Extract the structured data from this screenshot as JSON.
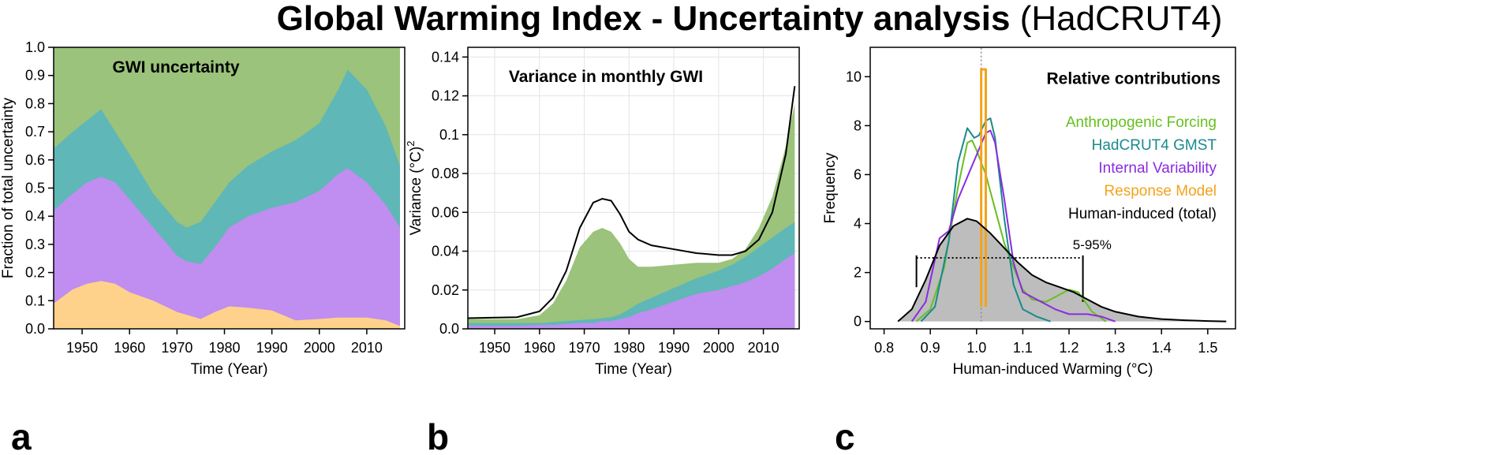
{
  "figure": {
    "title_bold": "Global Warming Index - Uncertainty analysis",
    "title_normal": "(HadCRUT4)"
  },
  "colors": {
    "orange_fill": "#fed28a",
    "purple_fill": "#c08df0",
    "teal_fill": "#5fb7b7",
    "green_fill": "#9bc37b",
    "grey_fill": "#bdbdbd",
    "anthropogenic": "#66c01f",
    "hadcrut": "#1a8a8c",
    "internal": "#8a2be2",
    "response": "#f2a31b",
    "total": "#000000"
  },
  "chart_data": [
    {
      "panel_letter": "a",
      "type": "area",
      "title": "GWI uncertainty",
      "xlabel": "Time (Year)",
      "ylabel": "Fraction of total uncertainty",
      "xlim": [
        1944,
        2018
      ],
      "ylim": [
        0,
        1.0
      ],
      "xticks": [
        "1950",
        "1960",
        "1970",
        "1980",
        "1990",
        "2000",
        "2010"
      ],
      "yticks": [
        "0.0",
        "0.1",
        "0.2",
        "0.3",
        "0.4",
        "0.5",
        "0.6",
        "0.7",
        "0.8",
        "0.9",
        "1.0"
      ],
      "grid": false,
      "stacking": "cumulative boundaries",
      "x": [
        1944,
        1948,
        1951,
        1954,
        1957,
        1960,
        1965,
        1970,
        1972,
        1975,
        1978,
        1981,
        1985,
        1990,
        1995,
        2000,
        2004,
        2006,
        2010,
        2014,
        2017
      ],
      "series": [
        {
          "color_key": "orange_fill",
          "values": [
            0.09,
            0.14,
            0.16,
            0.17,
            0.16,
            0.13,
            0.1,
            0.06,
            0.05,
            0.035,
            0.06,
            0.08,
            0.075,
            0.065,
            0.03,
            0.035,
            0.04,
            0.04,
            0.04,
            0.03,
            0.01
          ]
        },
        {
          "color_key": "purple_fill",
          "values": [
            0.42,
            0.48,
            0.52,
            0.54,
            0.52,
            0.46,
            0.36,
            0.26,
            0.24,
            0.23,
            0.29,
            0.36,
            0.4,
            0.43,
            0.45,
            0.49,
            0.55,
            0.57,
            0.52,
            0.44,
            0.36
          ]
        },
        {
          "color_key": "teal_fill",
          "values": [
            0.64,
            0.7,
            0.74,
            0.78,
            0.7,
            0.62,
            0.48,
            0.38,
            0.36,
            0.38,
            0.45,
            0.52,
            0.58,
            0.63,
            0.67,
            0.73,
            0.85,
            0.92,
            0.85,
            0.72,
            0.58
          ]
        },
        {
          "color_key": "green_fill",
          "values": [
            1.0,
            1.0,
            1.0,
            1.0,
            1.0,
            1.0,
            1.0,
            1.0,
            1.0,
            1.0,
            1.0,
            1.0,
            1.0,
            1.0,
            1.0,
            1.0,
            1.0,
            1.0,
            1.0,
            1.0,
            1.0
          ]
        }
      ]
    },
    {
      "panel_letter": "b",
      "type": "area",
      "title": "Variance in monthly GWI",
      "xlabel": "Time (Year)",
      "ylabel": "Variance (°C)",
      "ylabel_sup": "2",
      "xlim": [
        1944,
        2018
      ],
      "ylim": [
        0,
        0.145
      ],
      "xticks": [
        "1950",
        "1960",
        "1970",
        "1980",
        "1990",
        "2000",
        "2010"
      ],
      "yticks": [
        "0.0",
        "0.02",
        "0.04",
        "0.06",
        "0.08",
        "0.1",
        "0.12",
        "0.14"
      ],
      "grid": true,
      "x": [
        1944,
        1950,
        1955,
        1960,
        1963,
        1966,
        1969,
        1972,
        1974,
        1976,
        1978,
        1980,
        1982,
        1985,
        1990,
        1995,
        2000,
        2003,
        2006,
        2009,
        2012,
        2015,
        2017
      ],
      "series": [
        {
          "color_key": "purple_fill",
          "values": [
            0.0015,
            0.0015,
            0.0015,
            0.002,
            0.002,
            0.0025,
            0.003,
            0.003,
            0.004,
            0.004,
            0.005,
            0.006,
            0.008,
            0.01,
            0.014,
            0.018,
            0.02,
            0.022,
            0.024,
            0.027,
            0.031,
            0.036,
            0.039
          ]
        },
        {
          "color_key": "teal_fill",
          "values": [
            0.003,
            0.003,
            0.003,
            0.003,
            0.0035,
            0.004,
            0.0045,
            0.005,
            0.0055,
            0.006,
            0.0075,
            0.01,
            0.013,
            0.016,
            0.021,
            0.026,
            0.03,
            0.033,
            0.037,
            0.042,
            0.047,
            0.052,
            0.055
          ]
        },
        {
          "color_key": "green_fill",
          "values": [
            0.005,
            0.005,
            0.005,
            0.007,
            0.013,
            0.025,
            0.042,
            0.05,
            0.052,
            0.05,
            0.044,
            0.036,
            0.032,
            0.032,
            0.033,
            0.034,
            0.034,
            0.036,
            0.041,
            0.052,
            0.068,
            0.094,
            0.116
          ]
        }
      ],
      "total_line": {
        "color_key": "total",
        "values": [
          0.0055,
          0.0058,
          0.006,
          0.009,
          0.016,
          0.03,
          0.052,
          0.065,
          0.067,
          0.066,
          0.059,
          0.05,
          0.046,
          0.043,
          0.041,
          0.039,
          0.038,
          0.038,
          0.04,
          0.046,
          0.06,
          0.09,
          0.125
        ]
      }
    },
    {
      "panel_letter": "c",
      "type": "line",
      "title": "Relative contributions",
      "xlabel": "Human-induced Warming (°C)",
      "ylabel": "Frequency",
      "xlim": [
        0.77,
        1.56
      ],
      "ylim": [
        -0.3,
        11.2
      ],
      "xticks": [
        "0.8",
        "0.9",
        "1.0",
        "1.1",
        "1.2",
        "1.3",
        "1.4",
        "1.5"
      ],
      "yticks": [
        "0",
        "2",
        "4",
        "6",
        "8",
        "10"
      ],
      "grid": false,
      "legend_position": "top-right",
      "range_label": "5-95%",
      "range": [
        0.87,
        1.23
      ],
      "range_level": 2.6,
      "reference_x": 1.01,
      "series": [
        {
          "name": "Anthropogenic Forcing",
          "color_key": "anthropogenic",
          "x": [
            0.87,
            0.9,
            0.93,
            0.96,
            0.98,
            0.99,
            1.0,
            1.02,
            1.04,
            1.06,
            1.08,
            1.1,
            1.12,
            1.15,
            1.18,
            1.2,
            1.22,
            1.25,
            1.28
          ],
          "values": [
            0.0,
            0.5,
            2.2,
            5.5,
            7.3,
            7.4,
            7.0,
            6.0,
            4.6,
            3.2,
            2.2,
            1.3,
            0.9,
            0.8,
            1.1,
            1.3,
            1.2,
            0.4,
            0.0
          ]
        },
        {
          "name": "HadCRUT4 GMST",
          "color_key": "hadcrut",
          "x": [
            0.88,
            0.91,
            0.94,
            0.96,
            0.98,
            0.995,
            1.005,
            1.02,
            1.03,
            1.04,
            1.06,
            1.08,
            1.1,
            1.13,
            1.16
          ],
          "values": [
            0.0,
            0.6,
            3.3,
            6.5,
            7.9,
            7.5,
            7.6,
            8.2,
            8.3,
            7.5,
            4.2,
            1.5,
            0.5,
            0.2,
            0.0
          ]
        },
        {
          "name": "Internal Variability",
          "color_key": "internal",
          "x": [
            0.86,
            0.89,
            0.92,
            0.94,
            0.96,
            0.98,
            1.0,
            1.02,
            1.03,
            1.04,
            1.06,
            1.08,
            1.1,
            1.12,
            1.14,
            1.17,
            1.2,
            1.24,
            1.27,
            1.3
          ],
          "values": [
            0.0,
            0.8,
            3.4,
            3.7,
            5.0,
            5.9,
            6.8,
            7.7,
            7.8,
            7.3,
            5.0,
            2.4,
            1.2,
            1.0,
            0.8,
            0.5,
            0.3,
            0.3,
            0.2,
            0.0
          ]
        },
        {
          "name": "Response Model",
          "color_key": "response",
          "x": [
            1.01,
            1.01,
            1.02,
            1.02
          ],
          "values": [
            0.6,
            10.3,
            10.3,
            0.6
          ]
        },
        {
          "name": "Human-induced (total)",
          "color_key": "total",
          "filled": true,
          "x": [
            0.83,
            0.86,
            0.89,
            0.92,
            0.95,
            0.98,
            1.0,
            1.03,
            1.06,
            1.09,
            1.12,
            1.15,
            1.18,
            1.21,
            1.24,
            1.27,
            1.3,
            1.35,
            1.4,
            1.45,
            1.5,
            1.54
          ],
          "values": [
            0.0,
            0.5,
            1.7,
            3.1,
            3.9,
            4.2,
            4.1,
            3.6,
            3.0,
            2.4,
            1.9,
            1.6,
            1.4,
            1.2,
            0.9,
            0.6,
            0.4,
            0.2,
            0.1,
            0.05,
            0.02,
            0.0
          ]
        }
      ]
    }
  ]
}
